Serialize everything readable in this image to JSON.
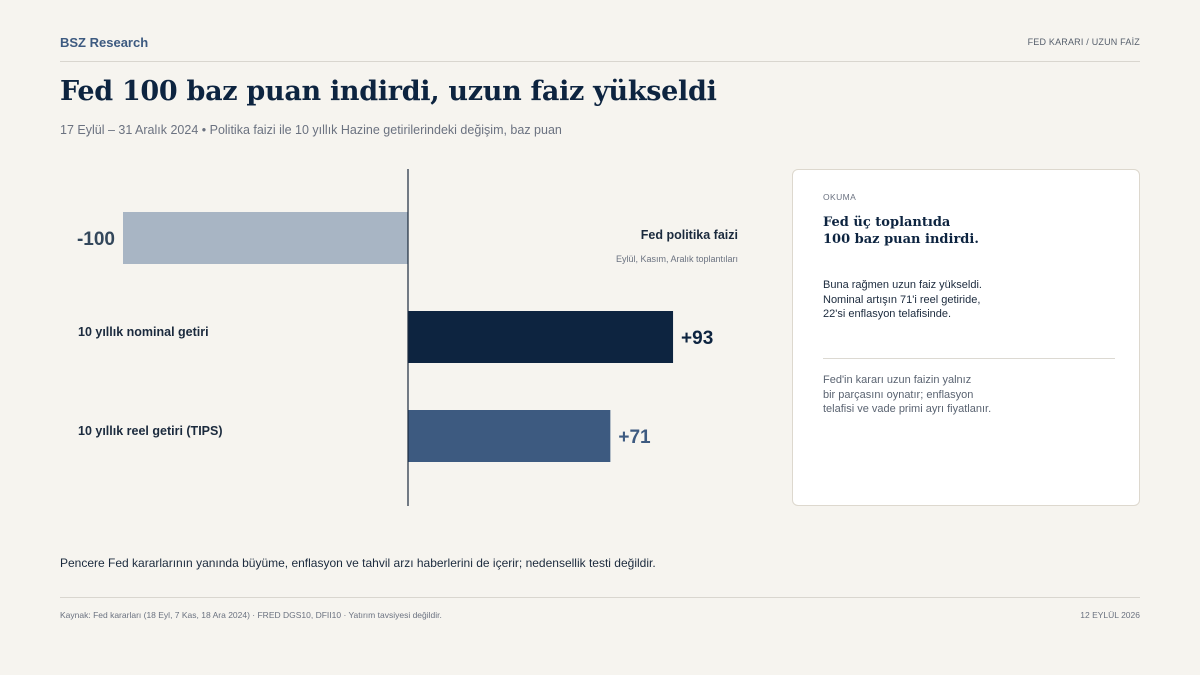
{
  "header": {
    "brand": "BSZ Research",
    "section": "FED KARARI / UZUN FAİZ"
  },
  "title": "Fed 100 baz puan indirdi, uzun faiz yükseldi",
  "subtitle": "17 Eylül – 31 Aralık 2024 • Politika faizi ile 10 yıllık Hazine getirilerindeki değişim, baz puan",
  "chart_data": {
    "type": "bar",
    "orientation": "horizontal",
    "categories": [
      "Fed politika faizi",
      "10 yıllık nominal getiri",
      "10 yıllık reel getiri (TIPS)"
    ],
    "values": [
      -100,
      93,
      71
    ],
    "value_labels": [
      "-100",
      "+93",
      "+71"
    ],
    "category_notes": [
      "Eylül, Kasım, Aralık toplantıları",
      "",
      ""
    ],
    "colors": [
      "#a8b5c4",
      "#0d2440",
      "#3d5a80"
    ],
    "value_label_colors": [
      "#33475b",
      "#0d2440",
      "#3d5a80"
    ],
    "xlim": [
      -100,
      100
    ],
    "grid": false,
    "legend": "none"
  },
  "panel": {
    "tag": "OKUMA",
    "headline": "Fed üç toplantıda\n100 baz puan indirdi.",
    "body": "Buna rağmen uzun faiz yükseldi.\nNominal artışın 71'i reel getiride,\n22'si enflasyon telafisinde.",
    "note": "Fed'in kararı uzun faizin yalnız\nbir parçasını oynatır; enflasyon\ntelafisi ve vade primi ayrı fiyatlanır."
  },
  "footnote": "Pencere Fed kararlarının yanında büyüme, enflasyon ve tahvil arzı haberlerini de içerir; nedensellik testi değildir.",
  "footer": {
    "source": "Kaynak: Fed kararları (18 Eyl, 7 Kas, 18 Ara 2024) · FRED DGS10, DFII10  ·  Yatırım tavsiyesi değildir.",
    "date": "12 EYLÜL 2026"
  }
}
